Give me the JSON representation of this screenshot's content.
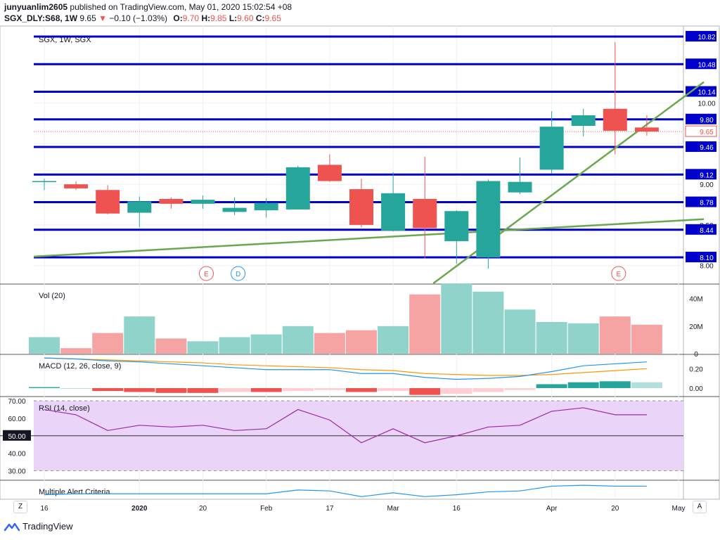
{
  "header": {
    "user": "junyuanlim2605",
    "published_text": "published on TradingView.com, May 01, 2020 15:02:54 +08",
    "symbol": "SGX_DLY:S68, 1W",
    "last": "9.65",
    "change_arrow": "▼",
    "change": "−0.10 (−1.03%)",
    "ohlc": [
      {
        "k": "O:",
        "v": "9.70"
      },
      {
        "k": "H:",
        "v": "9.85"
      },
      {
        "k": "L:",
        "v": "9.60"
      },
      {
        "k": "C:",
        "v": "9.65"
      }
    ]
  },
  "brand": "TradingView",
  "corner_buttons": {
    "left": "Z",
    "right": "A"
  },
  "colors": {
    "up": "#26a69a",
    "down": "#ef5350",
    "level_line": "#0000cc",
    "trend": "#6aa84f",
    "vol_up": "#8fd3cb",
    "vol_down": "#f5a3a3",
    "rsi": "#9c27b0",
    "rsi_band": "#ead4f7",
    "macd": "#2196f3",
    "signal": "#ff9800",
    "alert": "#2196f3"
  },
  "chart_data": [
    {
      "type": "candlestick",
      "title": "SGX, 1W, SGX",
      "x_ticks": [
        "16",
        "2020",
        "20",
        "Feb",
        "17",
        "Mar",
        "16",
        "Apr",
        "20",
        "May"
      ],
      "y_ticks": [
        "10.00",
        "9.50",
        "9.00",
        "8.50",
        "8.00"
      ],
      "ylim": [
        7.78,
        10.95
      ],
      "candles": [
        {
          "o": 9.04,
          "h": 9.07,
          "l": 8.93,
          "c": 9.04
        },
        {
          "o": 9.0,
          "h": 9.04,
          "l": 8.93,
          "c": 8.95
        },
        {
          "o": 8.93,
          "h": 8.99,
          "l": 8.63,
          "c": 8.64
        },
        {
          "o": 8.65,
          "h": 8.85,
          "l": 8.47,
          "c": 8.79
        },
        {
          "o": 8.82,
          "h": 8.84,
          "l": 8.7,
          "c": 8.76
        },
        {
          "o": 8.76,
          "h": 8.86,
          "l": 8.7,
          "c": 8.81
        },
        {
          "o": 8.66,
          "h": 8.84,
          "l": 8.62,
          "c": 8.71
        },
        {
          "o": 8.68,
          "h": 8.83,
          "l": 8.59,
          "c": 8.77
        },
        {
          "o": 8.69,
          "h": 9.23,
          "l": 8.69,
          "c": 9.21
        },
        {
          "o": 9.24,
          "h": 9.37,
          "l": 9.03,
          "c": 9.04
        },
        {
          "o": 8.94,
          "h": 9.07,
          "l": 8.47,
          "c": 8.5
        },
        {
          "o": 8.43,
          "h": 9.15,
          "l": 8.42,
          "c": 8.89
        },
        {
          "o": 8.82,
          "h": 9.34,
          "l": 8.09,
          "c": 8.46
        },
        {
          "o": 8.3,
          "h": 8.68,
          "l": 8.02,
          "c": 8.67
        },
        {
          "o": 8.1,
          "h": 9.06,
          "l": 7.96,
          "c": 9.04
        },
        {
          "o": 8.9,
          "h": 9.33,
          "l": 8.88,
          "c": 9.03
        },
        {
          "o": 9.18,
          "h": 9.9,
          "l": 9.13,
          "c": 9.71
        },
        {
          "o": 9.72,
          "h": 9.93,
          "l": 9.59,
          "c": 9.85
        },
        {
          "o": 9.93,
          "h": 10.75,
          "l": 9.37,
          "c": 9.66
        },
        {
          "o": 9.7,
          "h": 9.85,
          "l": 9.6,
          "c": 9.65
        }
      ],
      "horizontal_levels": [
        "10.82",
        "10.48",
        "10.14",
        "9.80",
        "9.46",
        "9.12",
        "8.78",
        "8.44",
        "8.10"
      ],
      "last_price_label": "9.65",
      "trend_lines": [
        {
          "from": [
            0,
            8.11
          ],
          "to": [
            20.8,
            8.57
          ]
        },
        {
          "from": [
            12.6,
            7.78
          ],
          "to": [
            20.8,
            10.26
          ]
        }
      ],
      "events": [
        {
          "bar": 5,
          "label": "E",
          "kind": "earnings"
        },
        {
          "bar": 6,
          "label": "D",
          "kind": "dividend"
        },
        {
          "bar": 18,
          "label": "E",
          "kind": "earnings"
        }
      ]
    },
    {
      "type": "bar",
      "title": "Vol (20)",
      "y_ticks": [
        "40M",
        "20M",
        "0"
      ],
      "ylim": [
        0,
        50
      ],
      "values": [
        12,
        4,
        15,
        27,
        11,
        9,
        12,
        14,
        20,
        15,
        17,
        20,
        43,
        51,
        45,
        32,
        23,
        22,
        27,
        21
      ]
    },
    {
      "type": "line",
      "title": "MACD (12, 26, close, 9)",
      "y_ticks": [
        "0.20",
        "0.00"
      ],
      "ylim": [
        -0.08,
        0.34
      ],
      "macd": [
        0.31,
        0.3,
        0.28,
        0.27,
        0.25,
        0.23,
        0.21,
        0.19,
        0.19,
        0.19,
        0.15,
        0.15,
        0.11,
        0.09,
        0.1,
        0.12,
        0.17,
        0.23,
        0.25,
        0.27
      ],
      "signal": [
        0.31,
        0.3,
        0.29,
        0.28,
        0.27,
        0.26,
        0.24,
        0.23,
        0.22,
        0.21,
        0.19,
        0.18,
        0.15,
        0.14,
        0.13,
        0.13,
        0.14,
        0.16,
        0.18,
        0.2
      ],
      "histogram": [
        0.01,
        0.0,
        -0.03,
        -0.04,
        -0.05,
        -0.05,
        -0.04,
        -0.04,
        -0.03,
        -0.02,
        -0.04,
        -0.03,
        -0.07,
        -0.06,
        -0.04,
        -0.02,
        0.04,
        0.06,
        0.07,
        0.06
      ]
    },
    {
      "type": "line",
      "title": "RSI (14, close)",
      "y_ticks": [
        "70.00",
        "60.00",
        "50.00",
        "40.00",
        "30.00"
      ],
      "ylim": [
        25,
        72
      ],
      "band": [
        30,
        70
      ],
      "midline": "50.00",
      "values": [
        65,
        62,
        53,
        56,
        55,
        56,
        53,
        54,
        65,
        59,
        46,
        54,
        46,
        50,
        55,
        56,
        64,
        66,
        62,
        62
      ]
    },
    {
      "type": "line",
      "title": "Multiple Alert Criteria",
      "values": [
        4,
        5,
        5,
        5,
        5,
        5,
        5,
        5,
        9,
        8,
        2,
        6,
        2,
        4,
        7,
        8,
        13,
        14,
        13,
        13
      ]
    }
  ]
}
